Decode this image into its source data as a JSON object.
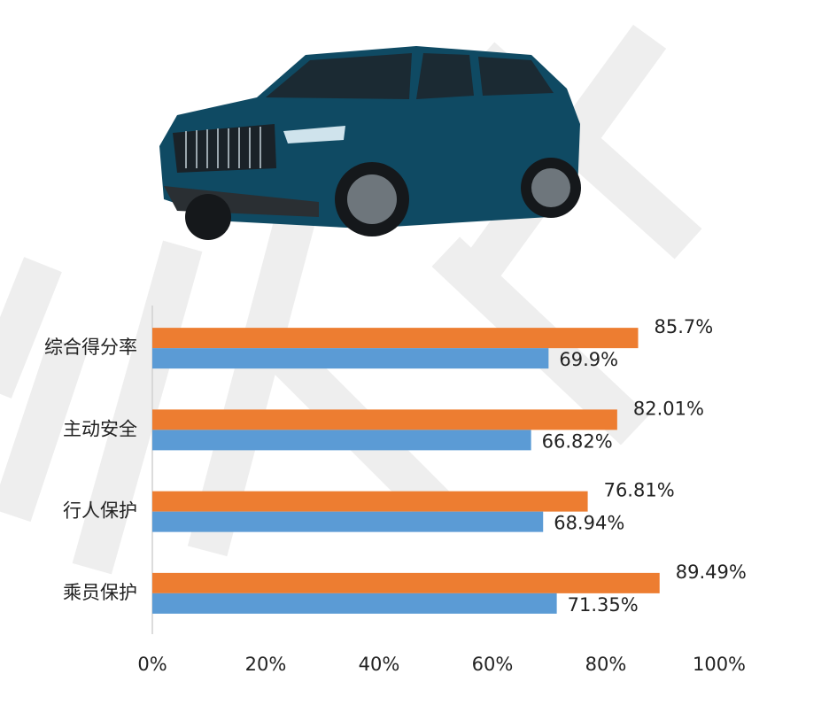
{
  "chart_data": {
    "type": "bar",
    "orientation": "horizontal",
    "categories": [
      "综合得分率",
      "主动安全",
      "行人保护",
      "乘员保护"
    ],
    "series": [
      {
        "color": "#ed7d31",
        "values": [
          85.7,
          82.01,
          76.81,
          89.49
        ],
        "value_labels": [
          "85.7%",
          "82.01%",
          "76.81%",
          "89.49%"
        ]
      },
      {
        "color": "#5b9bd5",
        "values": [
          69.9,
          66.82,
          68.94,
          71.35
        ],
        "value_labels": [
          "69.9%",
          "66.82%",
          "68.94%",
          "71.35%"
        ]
      }
    ],
    "xlim": [
      0,
      100
    ],
    "xticks": [
      {
        "value": 0,
        "label": "0%"
      },
      {
        "value": 20,
        "label": "20%"
      },
      {
        "value": 40,
        "label": "40%"
      },
      {
        "value": 60,
        "label": "60%"
      },
      {
        "value": 80,
        "label": "80%"
      },
      {
        "value": 100,
        "label": "100%"
      }
    ]
  }
}
